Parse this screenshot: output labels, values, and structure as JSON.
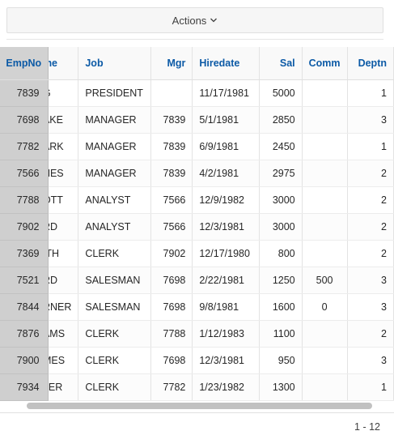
{
  "actions": {
    "label": "Actions"
  },
  "columns": {
    "empno": "EmpNo",
    "ename": "me",
    "job": "Job",
    "mgr": "Mgr",
    "hiredate": "Hiredate",
    "sal": "Sal",
    "comm": "Comm",
    "deptno": "Deptn"
  },
  "rows": [
    {
      "empno": "7839",
      "ename": "G",
      "job": "PRESIDENT",
      "mgr": "",
      "hiredate": "11/17/1981",
      "sal": "5000",
      "comm": "",
      "deptno": "1"
    },
    {
      "empno": "7698",
      "ename": "AKE",
      "job": "MANAGER",
      "mgr": "7839",
      "hiredate": "5/1/1981",
      "sal": "2850",
      "comm": "",
      "deptno": "3"
    },
    {
      "empno": "7782",
      "ename": "ARK",
      "job": "MANAGER",
      "mgr": "7839",
      "hiredate": "6/9/1981",
      "sal": "2450",
      "comm": "",
      "deptno": "1"
    },
    {
      "empno": "7566",
      "ename": "NES",
      "job": "MANAGER",
      "mgr": "7839",
      "hiredate": "4/2/1981",
      "sal": "2975",
      "comm": "",
      "deptno": "2"
    },
    {
      "empno": "7788",
      "ename": "OTT",
      "job": "ANALYST",
      "mgr": "7566",
      "hiredate": "12/9/1982",
      "sal": "3000",
      "comm": "",
      "deptno": "2"
    },
    {
      "empno": "7902",
      "ename": "RD",
      "job": "ANALYST",
      "mgr": "7566",
      "hiredate": "12/3/1981",
      "sal": "3000",
      "comm": "",
      "deptno": "2"
    },
    {
      "empno": "7369",
      "ename": "ITH",
      "job": "CLERK",
      "mgr": "7902",
      "hiredate": "12/17/1980",
      "sal": "800",
      "comm": "",
      "deptno": "2"
    },
    {
      "empno": "7521",
      "ename": "RD",
      "job": "SALESMAN",
      "mgr": "7698",
      "hiredate": "2/22/1981",
      "sal": "1250",
      "comm": "500",
      "deptno": "3"
    },
    {
      "empno": "7844",
      "ename": "RNER",
      "job": "SALESMAN",
      "mgr": "7698",
      "hiredate": "9/8/1981",
      "sal": "1600",
      "comm": "0",
      "deptno": "3"
    },
    {
      "empno": "7876",
      "ename": "AMS",
      "job": "CLERK",
      "mgr": "7788",
      "hiredate": "1/12/1983",
      "sal": "1100",
      "comm": "",
      "deptno": "2"
    },
    {
      "empno": "7900",
      "ename": "MES",
      "job": "CLERK",
      "mgr": "7698",
      "hiredate": "12/3/1981",
      "sal": "950",
      "comm": "",
      "deptno": "3"
    },
    {
      "empno": "7934",
      "ename": "LER",
      "job": "CLERK",
      "mgr": "7782",
      "hiredate": "1/23/1982",
      "sal": "1300",
      "comm": "",
      "deptno": "1"
    }
  ],
  "pagination": {
    "label": "1 - 12"
  }
}
